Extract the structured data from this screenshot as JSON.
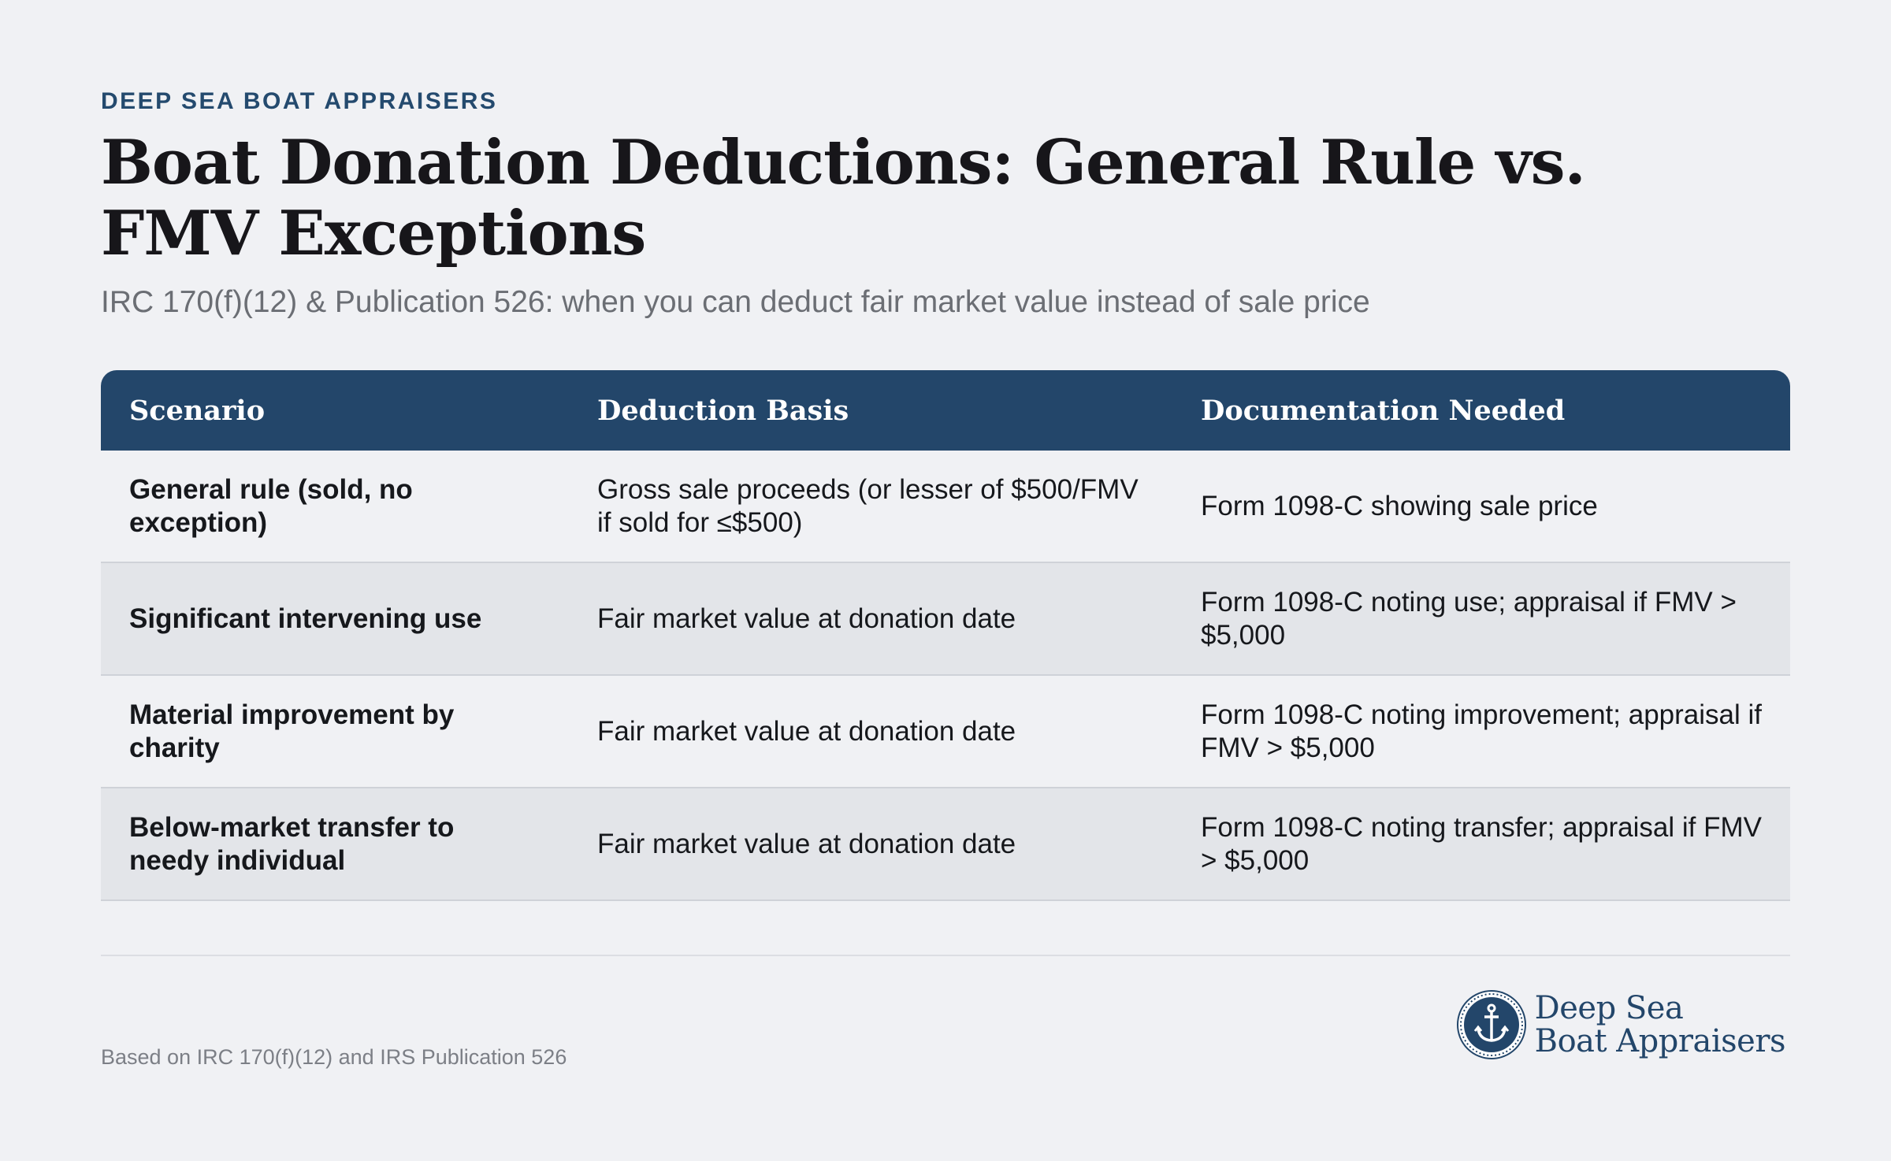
{
  "header": {
    "eyebrow": "DEEP SEA BOAT APPRAISERS",
    "title": "Boat Donation Deductions: General Rule vs. FMV Exceptions",
    "subtitle": "IRC 170(f)(12) & Publication 526: when you can deduct fair market value instead of sale price"
  },
  "table": {
    "columns": [
      "Scenario",
      "Deduction Basis",
      "Documentation Needed"
    ],
    "rows": [
      {
        "scenario": "General rule (sold, no exception)",
        "basis": "Gross sale proceeds (or lesser of $500/FMV if sold for ≤$500)",
        "docs": "Form 1098-C showing sale price"
      },
      {
        "scenario": "Significant intervening use",
        "basis": "Fair market value at donation date",
        "docs": "Form 1098-C noting use; appraisal if FMV > $5,000"
      },
      {
        "scenario": "Material improvement by charity",
        "basis": "Fair market value at donation date",
        "docs": "Form 1098-C noting improvement; appraisal if FMV > $5,000"
      },
      {
        "scenario": "Below-market transfer to needy individual",
        "basis": "Fair market value at donation date",
        "docs": "Form 1098-C noting transfer; appraisal if FMV > $5,000"
      }
    ]
  },
  "footer": {
    "footnote": "Based on IRC 170(f)(12) and IRS Publication 526",
    "logo_line1": "Deep Sea",
    "logo_line2": "Boat Appraisers",
    "logo_icon": "anchor-icon"
  },
  "colors": {
    "brand_navy": "#23466a",
    "background": "#f0f1f4",
    "row_alt": "#e3e5e9"
  }
}
